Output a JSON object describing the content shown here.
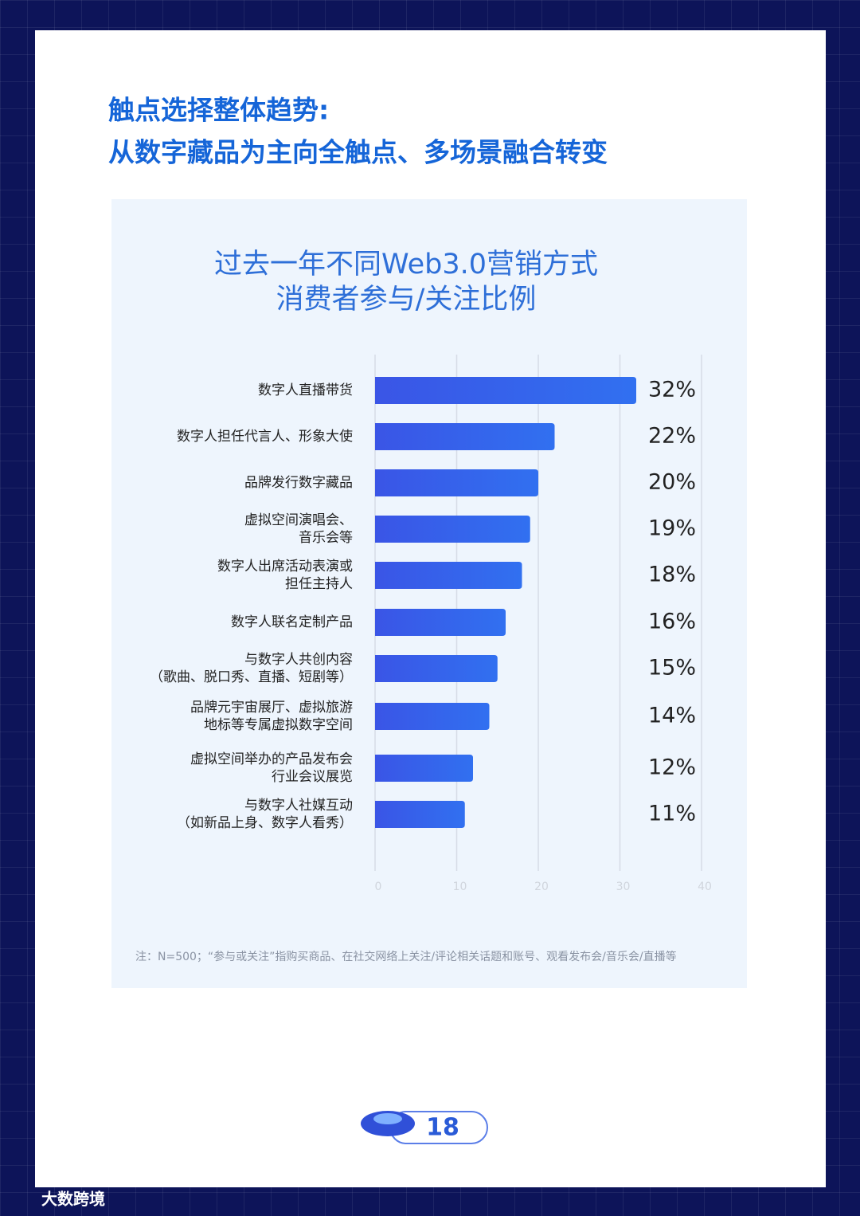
{
  "header": {
    "title_lines": [
      "触点选择整体趋势:",
      "从数字藏品为主向全触点、多场景融合转变"
    ]
  },
  "chart_data": {
    "type": "bar",
    "orientation": "horizontal",
    "title_lines": [
      "过去一年不同Web3.0营销方式",
      "消费者参与/关注比例"
    ],
    "categories": [
      "数字人直播带货",
      "数字人担任代言人、形象大使",
      "品牌发行数字藏品",
      "虚拟空间演唱会、\n音乐会等",
      "数字人出席活动表演或\n担任主持人",
      "数字人联名定制产品",
      "与数字人共创内容\n（歌曲、脱口秀、直播、短剧等）",
      "品牌元宇宙展厅、虚拟旅游\n地标等专属虚拟数字空间",
      "虚拟空间举办的产品发布会\n行业会议展览",
      "与数字人社媒互动\n（如新品上身、数字人看秀）"
    ],
    "values": [
      32,
      22,
      20,
      19,
      18,
      16,
      15,
      14,
      12,
      11
    ],
    "value_labels": [
      "32%",
      "22%",
      "20%",
      "19%",
      "18%",
      "16%",
      "15%",
      "14%",
      "12%",
      "11%"
    ],
    "color": "#3560ea",
    "xlim": [
      0,
      40
    ],
    "xticks": [
      0,
      10,
      20,
      30,
      40
    ],
    "grid": true,
    "note": "注：N=500；“参与或关注”指购买商品、在社交网络上关注/评论相关话题和账号、观看发布会/音乐会/直播等"
  },
  "footer": {
    "page_number": "18",
    "watermark": "大数跨境"
  }
}
